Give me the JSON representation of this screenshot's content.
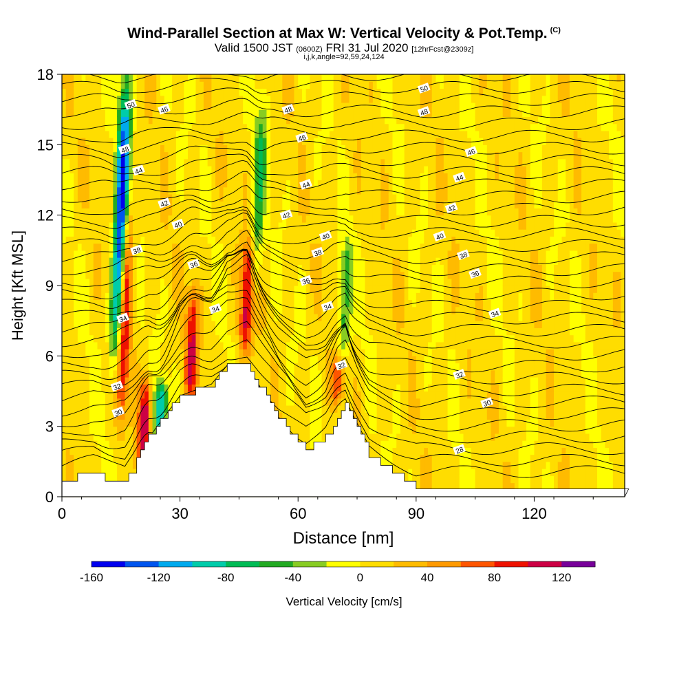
{
  "chart_data": {
    "type": "heatmap",
    "title": "Wind-Parallel Section at Max W: Vertical Velocity & Pot.Temp.",
    "copyright_mark": "(C)",
    "subtitle": {
      "valid_label": "Valid 1500 JST",
      "utc": "(0600Z)",
      "date": "FRI 31 Jul 2020",
      "forecast": "[12hrFcst@2309z]"
    },
    "indices": "i,j,k,angle=92,59,24,124",
    "xlabel": "Distance [nm]",
    "ylabel": "Height [Kft MSL]",
    "xlim": [
      0,
      143
    ],
    "ylim": [
      0,
      18
    ],
    "xticks": [
      0,
      30,
      60,
      90,
      120
    ],
    "yticks": [
      0,
      3,
      6,
      9,
      12,
      15,
      18
    ],
    "colorbar": {
      "label": "Vertical Velocity [cm/s]",
      "tick_labels": [
        "-160",
        "-120",
        "-80",
        "-40",
        "0",
        "40",
        "80",
        "120"
      ],
      "tick_values": [
        -160,
        -120,
        -80,
        -40,
        0,
        40,
        80,
        120
      ],
      "range": [
        -160,
        140
      ],
      "step": 20,
      "colors": [
        "#0000ee",
        "#0055ee",
        "#00aaee",
        "#00ccaa",
        "#00bb55",
        "#22aa22",
        "#88cc22",
        "#ffff00",
        "#ffdd00",
        "#ffbb00",
        "#ff9900",
        "#ff5500",
        "#ee1100",
        "#cc0044",
        "#770099"
      ]
    },
    "terrain_peaks_nm_kft": [
      [
        0,
        0.7
      ],
      [
        8,
        1.0
      ],
      [
        16,
        0.5
      ],
      [
        22,
        2.5
      ],
      [
        30,
        4.3
      ],
      [
        38,
        4.8
      ],
      [
        42,
        5.6
      ],
      [
        47,
        5.6
      ],
      [
        55,
        3.4
      ],
      [
        62,
        2.0
      ],
      [
        67,
        2.5
      ],
      [
        72,
        4.0
      ],
      [
        78,
        1.8
      ],
      [
        90,
        0.4
      ],
      [
        143,
        0.4
      ]
    ],
    "vertical_velocity_features": [
      {
        "x": 16,
        "z_from": 3,
        "z_to": 12,
        "peak": 90
      },
      {
        "x": 15,
        "z_from": 6,
        "z_to": 18,
        "peak": -150
      },
      {
        "x": 21,
        "z_from": 1,
        "z_to": 5,
        "peak": 100
      },
      {
        "x": 25,
        "z_from": 2,
        "z_to": 5,
        "peak": -110
      },
      {
        "x": 33,
        "z_from": 4,
        "z_to": 9,
        "peak": 90
      },
      {
        "x": 47,
        "z_from": 6,
        "z_to": 11,
        "peak": 100
      },
      {
        "x": 50,
        "z_from": 9,
        "z_to": 17,
        "peak": -60
      },
      {
        "x": 72,
        "z_from": 6,
        "z_to": 11,
        "peak": -60
      },
      {
        "x": 70,
        "z_from": 4,
        "z_to": 6,
        "peak": 60
      }
    ],
    "potential_temperature_contours": {
      "labeled_levels": [
        "28",
        "30",
        "32",
        "34",
        "36",
        "38",
        "40",
        "42",
        "44",
        "46",
        "48",
        "50"
      ],
      "labels": [
        {
          "text": "50",
          "x": 17.5,
          "z": 16.7
        },
        {
          "text": "46",
          "x": 26,
          "z": 16.5
        },
        {
          "text": "48",
          "x": 16,
          "z": 14.8
        },
        {
          "text": "44",
          "x": 19.5,
          "z": 13.9
        },
        {
          "text": "42",
          "x": 26,
          "z": 12.5
        },
        {
          "text": "40",
          "x": 29.5,
          "z": 11.6
        },
        {
          "text": "38",
          "x": 19,
          "z": 10.5
        },
        {
          "text": "36",
          "x": 33.5,
          "z": 9.9
        },
        {
          "text": "34",
          "x": 15.5,
          "z": 7.6
        },
        {
          "text": "34",
          "x": 39,
          "z": 8.0
        },
        {
          "text": "32",
          "x": 14,
          "z": 4.7
        },
        {
          "text": "30",
          "x": 14.3,
          "z": 3.6
        },
        {
          "text": "48",
          "x": 57.5,
          "z": 16.5
        },
        {
          "text": "46",
          "x": 61,
          "z": 15.3
        },
        {
          "text": "44",
          "x": 62,
          "z": 13.3
        },
        {
          "text": "42",
          "x": 57,
          "z": 12.0
        },
        {
          "text": "40",
          "x": 67,
          "z": 11.1
        },
        {
          "text": "38",
          "x": 65,
          "z": 10.4
        },
        {
          "text": "36",
          "x": 62,
          "z": 9.2
        },
        {
          "text": "34",
          "x": 67.5,
          "z": 8.1
        },
        {
          "text": "32",
          "x": 71,
          "z": 5.6
        },
        {
          "text": "50",
          "x": 92,
          "z": 17.4
        },
        {
          "text": "48",
          "x": 92,
          "z": 16.4
        },
        {
          "text": "46",
          "x": 104,
          "z": 14.7
        },
        {
          "text": "44",
          "x": 101,
          "z": 13.6
        },
        {
          "text": "42",
          "x": 99,
          "z": 12.3
        },
        {
          "text": "40",
          "x": 96,
          "z": 11.1
        },
        {
          "text": "38",
          "x": 102,
          "z": 10.3
        },
        {
          "text": "36",
          "x": 105,
          "z": 9.5
        },
        {
          "text": "34",
          "x": 110,
          "z": 7.8
        },
        {
          "text": "32",
          "x": 101,
          "z": 5.2
        },
        {
          "text": "30",
          "x": 108,
          "z": 4.0
        },
        {
          "text": "28",
          "x": 101,
          "z": 2.0
        }
      ]
    }
  }
}
